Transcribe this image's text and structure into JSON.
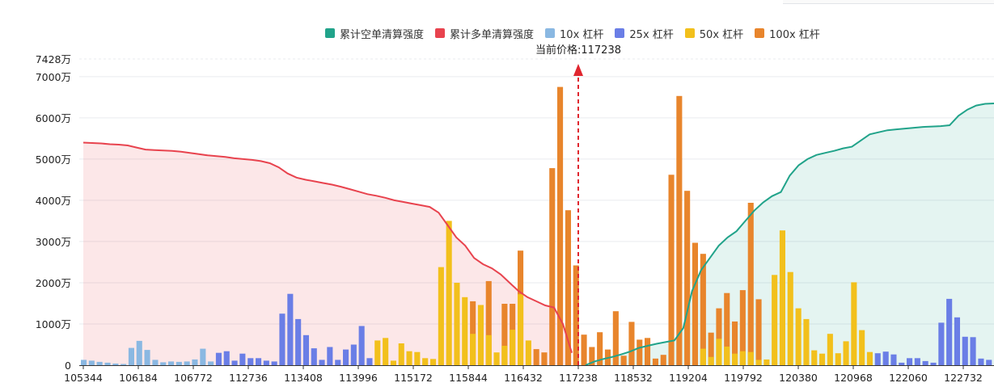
{
  "chart_data": {
    "type": "bar",
    "current_price_label": "当前价格:117238",
    "current_price": 117238,
    "legend": [
      {
        "key": "short",
        "label": "累计空单清算强度",
        "color": "#21a38a"
      },
      {
        "key": "long",
        "label": "累计多单清算强度",
        "color": "#e8434e"
      },
      {
        "key": "l10",
        "label": "10x 杠杆",
        "color": "#8ab8e2"
      },
      {
        "key": "l25",
        "label": "25x 杠杆",
        "color": "#6a7ee6"
      },
      {
        "key": "l50",
        "label": "50x 杠杆",
        "color": "#f2c01c"
      },
      {
        "key": "l100",
        "label": "100x 杠杆",
        "color": "#e8852c"
      }
    ],
    "y_ticks": [
      "0",
      "1000万",
      "2000万",
      "3000万",
      "4000万",
      "5000万",
      "6000万",
      "7000万",
      "7428万"
    ],
    "ylim": [
      0,
      7428
    ],
    "x_ticks": [
      "105344",
      "106184",
      "106772",
      "112736",
      "113408",
      "113996",
      "115172",
      "115844",
      "116432",
      "117238",
      "118532",
      "119204",
      "119792",
      "120380",
      "120968",
      "122060",
      "122732"
    ],
    "bars": [
      {
        "c": "l10",
        "v": 130
      },
      {
        "c": "l10",
        "v": 110
      },
      {
        "c": "l10",
        "v": 80
      },
      {
        "c": "l10",
        "v": 60
      },
      {
        "c": "l10",
        "v": 40
      },
      {
        "c": "l10",
        "v": 30
      },
      {
        "c": "l10",
        "v": 420
      },
      {
        "c": "l10",
        "v": 590
      },
      {
        "c": "l10",
        "v": 370
      },
      {
        "c": "l10",
        "v": 130
      },
      {
        "c": "l10",
        "v": 70
      },
      {
        "c": "l10",
        "v": 90
      },
      {
        "c": "l10",
        "v": 80
      },
      {
        "c": "l10",
        "v": 90
      },
      {
        "c": "l10",
        "v": 140
      },
      {
        "c": "l10",
        "v": 400
      },
      {
        "c": "l10",
        "v": 90
      },
      {
        "c": "l25",
        "v": 300
      },
      {
        "c": "l25",
        "v": 340
      },
      {
        "c": "l25",
        "v": 110
      },
      {
        "c": "l25",
        "v": 280
      },
      {
        "c": "l25",
        "v": 170
      },
      {
        "c": "l25",
        "v": 170
      },
      {
        "c": "l25",
        "v": 110
      },
      {
        "c": "l25",
        "v": 90
      },
      {
        "c": "l25",
        "v": 1250
      },
      {
        "c": "l25",
        "v": 1730
      },
      {
        "c": "l25",
        "v": 1120
      },
      {
        "c": "l25",
        "v": 730
      },
      {
        "c": "l25",
        "v": 410
      },
      {
        "c": "l25",
        "v": 130
      },
      {
        "c": "l25",
        "v": 440
      },
      {
        "c": "l25",
        "v": 130
      },
      {
        "c": "l25",
        "v": 380
      },
      {
        "c": "l25",
        "v": 500
      },
      {
        "c": "l25",
        "v": 950
      },
      {
        "c": "l25",
        "v": 170
      },
      {
        "c": "l50",
        "v": 600
      },
      {
        "c": "l50",
        "v": 660
      },
      {
        "c": "l50",
        "v": 110
      },
      {
        "c": "l50",
        "v": 530
      },
      {
        "c": "l50",
        "v": 340
      },
      {
        "c": "l50",
        "v": 320
      },
      {
        "c": "l50",
        "v": 170
      },
      {
        "c": "l50",
        "v": 150
      },
      {
        "c": "l50",
        "v": 2380
      },
      {
        "c": "l50",
        "v": 3500
      },
      {
        "c": "l50",
        "v": 2000
      },
      {
        "c": "l50",
        "v": 1650
      },
      {
        "c": "l100",
        "v": 1550,
        "b": 760
      },
      {
        "c": "l50",
        "v": 1460
      },
      {
        "c": "l100",
        "v": 2040,
        "b": 730
      },
      {
        "c": "l50",
        "v": 310
      },
      {
        "c": "l100",
        "v": 1490,
        "b": 470
      },
      {
        "c": "l100",
        "v": 1490,
        "b": 860
      },
      {
        "c": "l100",
        "v": 2780,
        "b": 1720
      },
      {
        "c": "l50",
        "v": 600
      },
      {
        "c": "l100",
        "v": 390
      },
      {
        "c": "l100",
        "v": 310
      },
      {
        "c": "l100",
        "v": 4780
      },
      {
        "c": "l100",
        "v": 6750
      },
      {
        "c": "l100",
        "v": 3760
      },
      {
        "c": "l100",
        "v": 2420
      },
      {
        "c": "l100",
        "v": 740
      },
      {
        "c": "l100",
        "v": 440
      },
      {
        "c": "l100",
        "v": 800
      },
      {
        "c": "l100",
        "v": 380
      },
      {
        "c": "l100",
        "v": 1310
      },
      {
        "c": "l100",
        "v": 230
      },
      {
        "c": "l100",
        "v": 1050
      },
      {
        "c": "l100",
        "v": 620
      },
      {
        "c": "l100",
        "v": 660
      },
      {
        "c": "l100",
        "v": 160
      },
      {
        "c": "l100",
        "v": 250
      },
      {
        "c": "l100",
        "v": 4620
      },
      {
        "c": "l100",
        "v": 6530
      },
      {
        "c": "l100",
        "v": 4230
      },
      {
        "c": "l100",
        "v": 2970
      },
      {
        "c": "l100",
        "v": 2700,
        "b": 400
      },
      {
        "c": "l100",
        "v": 790,
        "b": 200
      },
      {
        "c": "l100",
        "v": 1380,
        "b": 640
      },
      {
        "c": "l100",
        "v": 1750,
        "b": 450
      },
      {
        "c": "l100",
        "v": 1060,
        "b": 280
      },
      {
        "c": "l100",
        "v": 1820,
        "b": 340
      },
      {
        "c": "l100",
        "v": 3940,
        "b": 320
      },
      {
        "c": "l100",
        "v": 1600,
        "b": 130
      },
      {
        "c": "l50",
        "v": 140
      },
      {
        "c": "l50",
        "v": 2190
      },
      {
        "c": "l50",
        "v": 3270
      },
      {
        "c": "l50",
        "v": 2260
      },
      {
        "c": "l50",
        "v": 1380
      },
      {
        "c": "l50",
        "v": 1120
      },
      {
        "c": "l50",
        "v": 360
      },
      {
        "c": "l50",
        "v": 280
      },
      {
        "c": "l50",
        "v": 760
      },
      {
        "c": "l50",
        "v": 290
      },
      {
        "c": "l50",
        "v": 580
      },
      {
        "c": "l50",
        "v": 2010
      },
      {
        "c": "l50",
        "v": 850
      },
      {
        "c": "l50",
        "v": 320
      },
      {
        "c": "l25",
        "v": 290
      },
      {
        "c": "l25",
        "v": 330
      },
      {
        "c": "l25",
        "v": 260
      },
      {
        "c": "l25",
        "v": 60
      },
      {
        "c": "l25",
        "v": 170
      },
      {
        "c": "l25",
        "v": 170
      },
      {
        "c": "l25",
        "v": 100
      },
      {
        "c": "l25",
        "v": 60
      },
      {
        "c": "l25",
        "v": 1030
      },
      {
        "c": "l25",
        "v": 1610
      },
      {
        "c": "l25",
        "v": 1160
      },
      {
        "c": "l25",
        "v": 690
      },
      {
        "c": "l25",
        "v": 680
      },
      {
        "c": "l25",
        "v": 160
      },
      {
        "c": "l25",
        "v": 130
      }
    ],
    "long_curve": [
      5400,
      5390,
      5380,
      5360,
      5350,
      5330,
      5280,
      5230,
      5220,
      5210,
      5200,
      5180,
      5150,
      5120,
      5090,
      5070,
      5050,
      5020,
      5000,
      4980,
      4950,
      4900,
      4800,
      4650,
      4550,
      4500,
      4460,
      4420,
      4380,
      4330,
      4270,
      4210,
      4150,
      4110,
      4060,
      4000,
      3960,
      3920,
      3880,
      3840,
      3700,
      3400,
      3100,
      2900,
      2600,
      2450,
      2350,
      2200,
      2000,
      1800,
      1650,
      1550,
      1450,
      1400,
      1000,
      300
    ],
    "short_curve": [
      0,
      90,
      150,
      200,
      260,
      330,
      420,
      470,
      520,
      560,
      600,
      900,
      1800,
      2300,
      2600,
      2900,
      3100,
      3250,
      3500,
      3750,
      3950,
      4100,
      4200,
      4600,
      4850,
      5000,
      5100,
      5150,
      5200,
      5260,
      5300,
      5450,
      5600,
      5650,
      5700,
      5720,
      5740,
      5760,
      5780,
      5790,
      5800,
      5820,
      6050,
      6200,
      6300,
      6340,
      6350
    ]
  }
}
